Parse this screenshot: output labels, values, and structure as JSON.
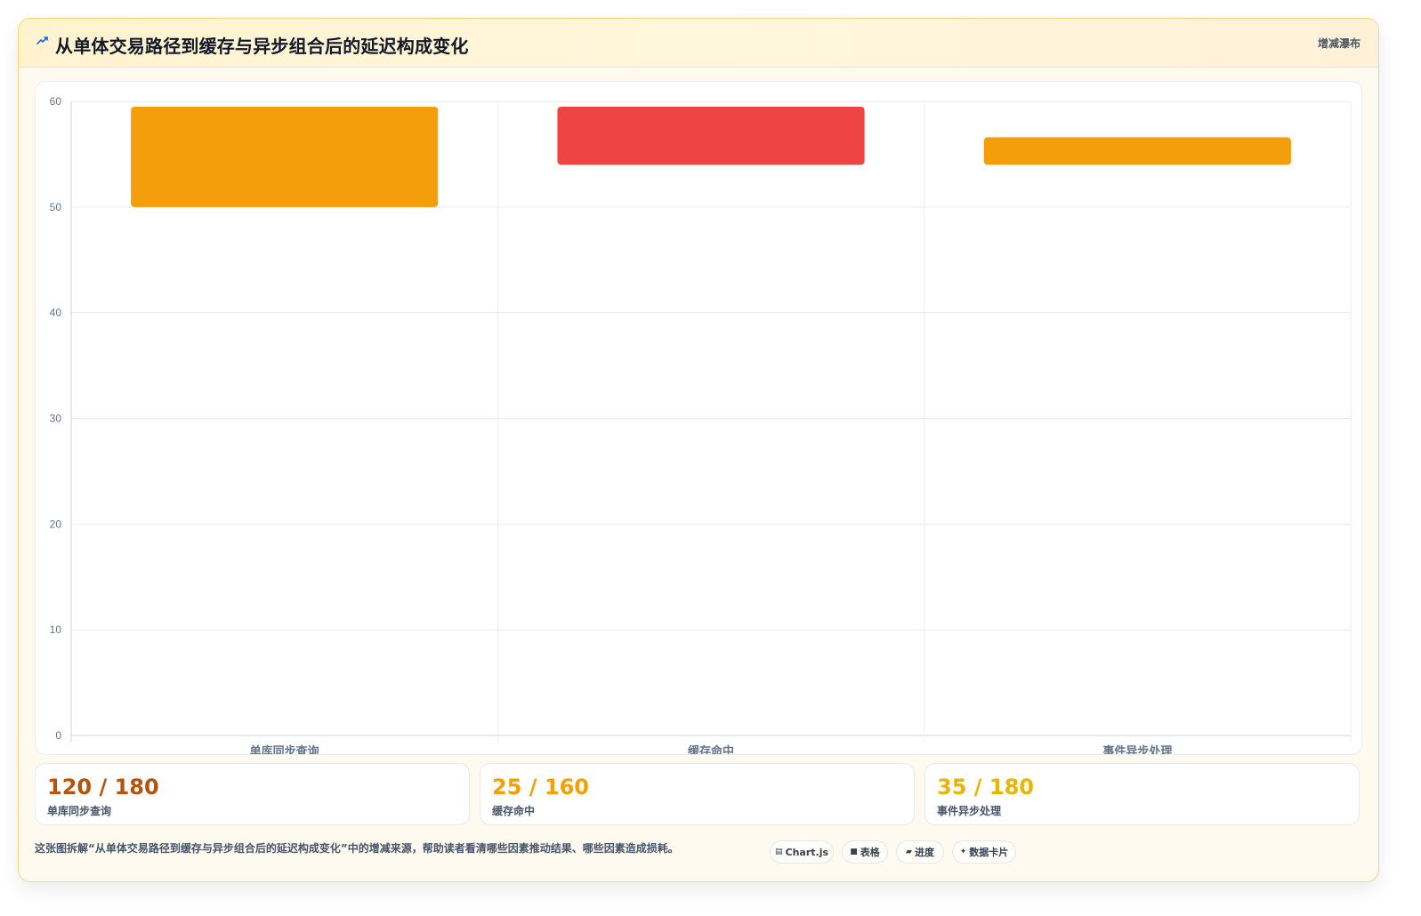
{
  "header": {
    "title": "从单体交易路径到缓存与异步组合后的延迟构成变化",
    "chart_type_label": "增减瀑布",
    "icon": "wave-icon"
  },
  "colors": {
    "orange": "#f59e0b",
    "red": "#ef4444",
    "summary_brown": "#b45309",
    "summary_orange": "#f59e0b",
    "summary_amber": "#eab308",
    "border": "#f5d77a"
  },
  "chart_data": {
    "type": "bar",
    "subtype": "floating-bar",
    "categories": [
      "单库同步查询",
      "缓存命中",
      "事件异步处理"
    ],
    "series": [
      {
        "values": [
          [
            50,
            59.5
          ],
          [
            54,
            59.5
          ],
          [
            54,
            56.6
          ]
        ],
        "colors": [
          "#f59e0b",
          "#ef4444",
          "#f59e0b"
        ]
      }
    ],
    "ylim": [
      0,
      60
    ],
    "yticks": [
      0,
      10,
      20,
      30,
      40,
      50,
      60
    ],
    "xlabel": "",
    "ylabel": "",
    "grid": true
  },
  "summaries": [
    {
      "value": "120 / 180",
      "label": "单库同步查询",
      "color": "#b45309"
    },
    {
      "value": "25 / 160",
      "label": "缓存命中",
      "color": "#f59e0b"
    },
    {
      "value": "35 / 180",
      "label": "事件异步处理",
      "color": "#eab308"
    }
  ],
  "footer": {
    "note": "这张图拆解“从单体交易路径到缓存与异步组合后的延迟构成变化”中的增减来源，帮助读者看清哪些因素推动结果、哪些因素造成损耗。",
    "pills": [
      {
        "label": "Chart.js",
        "icon": "chart-js-icon",
        "glyph": "▤"
      },
      {
        "label": "表格",
        "icon": "table-icon",
        "glyph": "■"
      },
      {
        "label": "进度",
        "icon": "progress-icon",
        "glyph": "▰"
      },
      {
        "label": "数据卡片",
        "icon": "data-card-icon",
        "glyph": "✦"
      }
    ]
  }
}
